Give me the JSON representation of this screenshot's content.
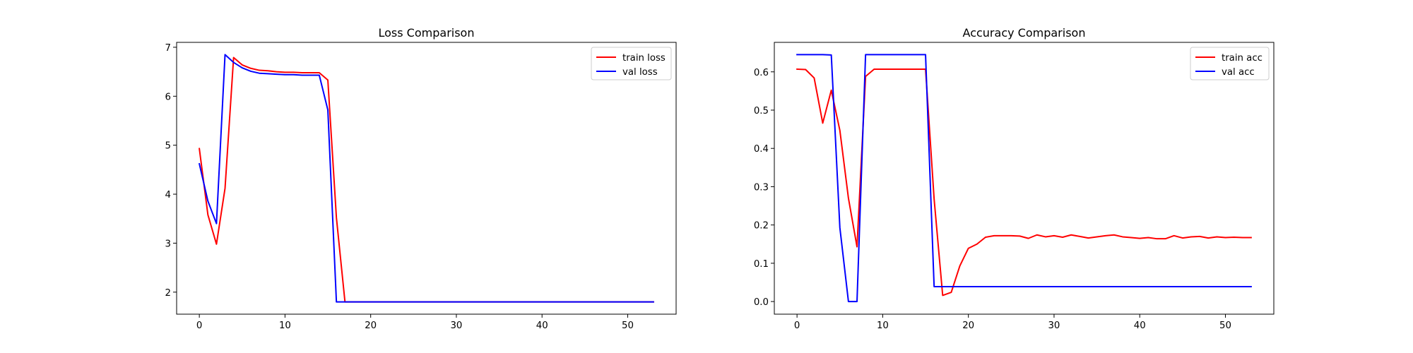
{
  "chart_data": [
    {
      "type": "line",
      "title": "Loss Comparison",
      "xlabel": "",
      "ylabel": "",
      "xlim": [
        -2.65,
        55.65
      ],
      "ylim": [
        1.55,
        7.1
      ],
      "xticks": [
        0,
        10,
        20,
        30,
        40,
        50
      ],
      "yticks": [
        2,
        3,
        4,
        5,
        6,
        7
      ],
      "grid": false,
      "legend_position": "upper right",
      "series": [
        {
          "name": "train loss",
          "color": "#ff0000",
          "x": [
            0,
            1,
            2,
            3,
            4,
            5,
            6,
            7,
            8,
            9,
            10,
            11,
            12,
            13,
            14,
            15,
            16,
            17,
            18,
            19,
            20,
            21,
            22,
            23,
            24,
            25,
            26,
            27,
            28,
            29,
            30,
            31,
            32,
            33,
            34,
            35,
            36,
            37,
            38,
            39,
            40,
            41,
            42,
            43,
            44,
            45,
            46,
            47,
            48,
            49,
            50,
            51,
            52,
            53
          ],
          "values": [
            4.93,
            3.58,
            2.98,
            4.12,
            6.79,
            6.64,
            6.57,
            6.53,
            6.52,
            6.5,
            6.49,
            6.49,
            6.48,
            6.48,
            6.48,
            6.33,
            3.52,
            1.8,
            1.8,
            1.8,
            1.8,
            1.8,
            1.8,
            1.8,
            1.8,
            1.8,
            1.8,
            1.8,
            1.8,
            1.8,
            1.8,
            1.8,
            1.8,
            1.8,
            1.8,
            1.8,
            1.8,
            1.8,
            1.8,
            1.8,
            1.8,
            1.8,
            1.8,
            1.8,
            1.8,
            1.8,
            1.8,
            1.8,
            1.8,
            1.8,
            1.8,
            1.8,
            1.8,
            1.8
          ]
        },
        {
          "name": "val loss",
          "color": "#0000ff",
          "x": [
            0,
            1,
            2,
            3,
            4,
            5,
            6,
            7,
            8,
            9,
            10,
            11,
            12,
            13,
            14,
            15,
            16,
            17,
            18,
            19,
            20,
            21,
            22,
            23,
            24,
            25,
            26,
            27,
            28,
            29,
            30,
            31,
            32,
            33,
            34,
            35,
            36,
            37,
            38,
            39,
            40,
            41,
            42,
            43,
            44,
            45,
            46,
            47,
            48,
            49,
            50,
            51,
            52,
            53
          ],
          "values": [
            4.62,
            3.86,
            3.4,
            6.85,
            6.69,
            6.58,
            6.51,
            6.47,
            6.46,
            6.45,
            6.44,
            6.44,
            6.43,
            6.43,
            6.43,
            5.72,
            1.8,
            1.8,
            1.8,
            1.8,
            1.8,
            1.8,
            1.8,
            1.8,
            1.8,
            1.8,
            1.8,
            1.8,
            1.8,
            1.8,
            1.8,
            1.8,
            1.8,
            1.8,
            1.8,
            1.8,
            1.8,
            1.8,
            1.8,
            1.8,
            1.8,
            1.8,
            1.8,
            1.8,
            1.8,
            1.8,
            1.8,
            1.8,
            1.8,
            1.8,
            1.8,
            1.8,
            1.8,
            1.8
          ]
        }
      ]
    },
    {
      "type": "line",
      "title": "Accuracy Comparison",
      "xlabel": "",
      "ylabel": "",
      "xlim": [
        -2.65,
        55.65
      ],
      "ylim": [
        -0.033,
        0.677
      ],
      "xticks": [
        0,
        10,
        20,
        30,
        40,
        50
      ],
      "yticks": [
        0.0,
        0.1,
        0.2,
        0.3,
        0.4,
        0.5,
        0.6
      ],
      "ytick_labels": [
        "0.0",
        "0.1",
        "0.2",
        "0.3",
        "0.4",
        "0.5",
        "0.6"
      ],
      "grid": false,
      "legend_position": "upper right",
      "series": [
        {
          "name": "train acc",
          "color": "#ff0000",
          "x": [
            0,
            1,
            2,
            3,
            4,
            5,
            6,
            7,
            8,
            9,
            10,
            11,
            12,
            13,
            14,
            15,
            16,
            17,
            18,
            19,
            20,
            21,
            22,
            23,
            24,
            25,
            26,
            27,
            28,
            29,
            30,
            31,
            32,
            33,
            34,
            35,
            36,
            37,
            38,
            39,
            40,
            41,
            42,
            43,
            44,
            45,
            46,
            47,
            48,
            49,
            50,
            51,
            52,
            53
          ],
          "values": [
            0.607,
            0.606,
            0.584,
            0.466,
            0.552,
            0.447,
            0.27,
            0.143,
            0.588,
            0.607,
            0.607,
            0.607,
            0.607,
            0.607,
            0.607,
            0.607,
            0.268,
            0.016,
            0.024,
            0.093,
            0.139,
            0.15,
            0.168,
            0.172,
            0.172,
            0.172,
            0.171,
            0.165,
            0.174,
            0.169,
            0.172,
            0.168,
            0.174,
            0.17,
            0.166,
            0.169,
            0.172,
            0.174,
            0.169,
            0.167,
            0.165,
            0.167,
            0.164,
            0.164,
            0.172,
            0.166,
            0.169,
            0.17,
            0.166,
            0.169,
            0.167,
            0.168,
            0.167,
            0.167
          ]
        },
        {
          "name": "val acc",
          "color": "#0000ff",
          "x": [
            0,
            1,
            2,
            3,
            4,
            5,
            6,
            7,
            8,
            9,
            10,
            11,
            12,
            13,
            14,
            15,
            16,
            17,
            18,
            19,
            20,
            21,
            22,
            23,
            24,
            25,
            26,
            27,
            28,
            29,
            30,
            31,
            32,
            33,
            34,
            35,
            36,
            37,
            38,
            39,
            40,
            41,
            42,
            43,
            44,
            45,
            46,
            47,
            48,
            49,
            50,
            51,
            52,
            53
          ],
          "values": [
            0.645,
            0.645,
            0.645,
            0.645,
            0.644,
            0.193,
            0.0,
            0.0,
            0.645,
            0.645,
            0.645,
            0.645,
            0.645,
            0.645,
            0.645,
            0.645,
            0.039,
            0.039,
            0.039,
            0.039,
            0.039,
            0.039,
            0.039,
            0.039,
            0.039,
            0.039,
            0.039,
            0.039,
            0.039,
            0.039,
            0.039,
            0.039,
            0.039,
            0.039,
            0.039,
            0.039,
            0.039,
            0.039,
            0.039,
            0.039,
            0.039,
            0.039,
            0.039,
            0.039,
            0.039,
            0.039,
            0.039,
            0.039,
            0.039,
            0.039,
            0.039,
            0.039,
            0.039,
            0.039
          ]
        }
      ]
    }
  ]
}
